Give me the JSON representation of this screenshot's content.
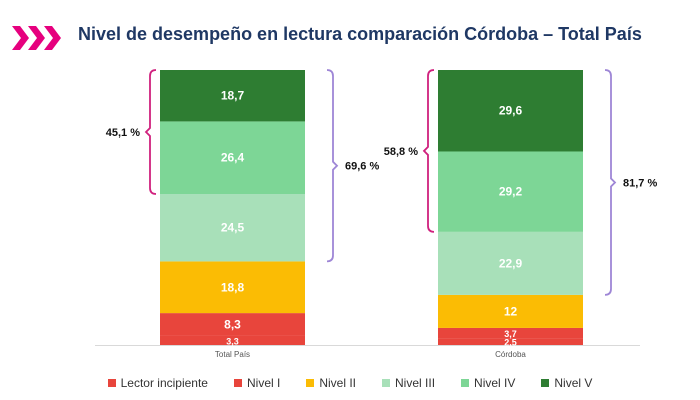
{
  "title": "Nivel de desempeño en lectura comparación Córdoba  – Total País",
  "colors": {
    "accent": "#e6007e",
    "title": "#1f3864",
    "bracket_pink": "#d0217e",
    "bracket_purple": "#9e86d6",
    "axis": "#d9d9d9"
  },
  "chart_data": {
    "type": "bar",
    "stacked": true,
    "percent_scale": true,
    "ylim": [
      0,
      100
    ],
    "categories": [
      "Total País",
      "Córdoba"
    ],
    "series": [
      {
        "name": "Lector incipiente",
        "color": "#e8453c",
        "values": [
          3.3,
          2.5
        ],
        "labels": [
          "3,3",
          "2,5"
        ]
      },
      {
        "name": "Nivel I",
        "color": "#e8453c",
        "values": [
          8.3,
          3.7
        ],
        "labels": [
          "8,3",
          "3,7"
        ]
      },
      {
        "name": "Nivel II",
        "color": "#fbbc04",
        "values": [
          18.8,
          12
        ],
        "labels": [
          "18,8",
          "12"
        ]
      },
      {
        "name": "Nivel III",
        "color": "#a8e0b9",
        "values": [
          24.5,
          22.9
        ],
        "labels": [
          "24,5",
          "22,9"
        ]
      },
      {
        "name": "Nivel IV",
        "color": "#7dd696",
        "values": [
          26.4,
          29.2
        ],
        "labels": [
          "26,4",
          "29,2"
        ]
      },
      {
        "name": "Nivel V",
        "color": "#2e7d32",
        "values": [
          18.7,
          29.6
        ],
        "labels": [
          "18,7",
          "29,6"
        ]
      }
    ],
    "annotations": [
      {
        "category": "Total País",
        "label": "45,1 %",
        "from_series": "Nivel IV",
        "to_series": "Nivel V",
        "side": "left",
        "color": "#d0217e"
      },
      {
        "category": "Total País",
        "label": "69,6 %",
        "from_series": "Nivel III",
        "to_series": "Nivel V",
        "side": "right",
        "color": "#9e86d6"
      },
      {
        "category": "Córdoba",
        "label": "58,8 %",
        "from_series": "Nivel IV",
        "to_series": "Nivel V",
        "side": "left",
        "color": "#d0217e"
      },
      {
        "category": "Córdoba",
        "label": "81,7 %",
        "from_series": "Nivel III",
        "to_series": "Nivel V",
        "side": "right",
        "color": "#9e86d6"
      }
    ]
  }
}
